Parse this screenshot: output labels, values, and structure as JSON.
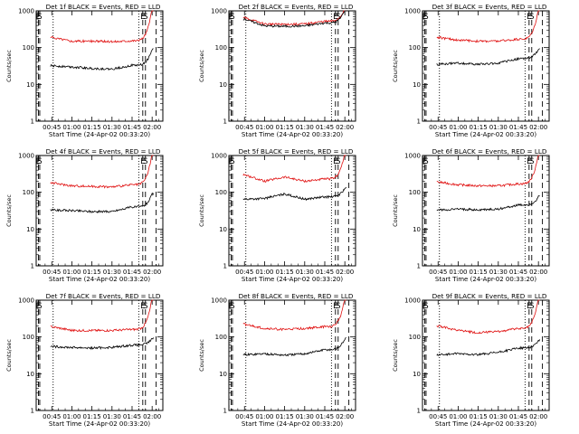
{
  "colors": {
    "events": "#000000",
    "lld": "#e01010",
    "frame": "#000000",
    "background": "#ffffff"
  },
  "chart_data": [
    {
      "type": "line",
      "title": "Det 1f BLACK = Events, RED = LLD",
      "ylabel": "Counts/sec",
      "xlabel": "Start Time (24-Apr-02 00:33:20)",
      "yscale": "log",
      "ylim": [
        1,
        1000
      ],
      "ytick_labels": [
        "1",
        "10",
        "100",
        "1000"
      ],
      "x": [
        "00:45",
        "01:00",
        "01:15",
        "01:30",
        "01:45",
        "02:00"
      ],
      "xtick_labels": [
        "00:45",
        "01:00",
        "01:15",
        "01:30",
        "01:45",
        "02:00"
      ],
      "markers": [
        {
          "time": "00:35",
          "label": "E",
          "style": "dashed"
        },
        {
          "time": "00:36",
          "label": "S",
          "style": "dashed"
        },
        {
          "time": "00:46",
          "label": "",
          "style": "dotted"
        },
        {
          "time": "01:50",
          "label": "",
          "style": "dotted"
        },
        {
          "time": "01:53",
          "label": "E",
          "style": "dashed"
        },
        {
          "time": "01:55",
          "label": "S",
          "style": "dashed"
        },
        {
          "time": "02:03",
          "label": "",
          "style": "dashed"
        }
      ],
      "series": [
        {
          "name": "LLD",
          "color": "#e01010",
          "values": [
            190,
            150,
            150,
            145,
            155,
            1200
          ]
        },
        {
          "name": "Events",
          "color": "#000000",
          "values": [
            32,
            30,
            27,
            26,
            33,
            90
          ]
        }
      ]
    },
    {
      "type": "line",
      "title": "Det 2f BLACK = Events, RED = LLD",
      "ylabel": "Counts/sec",
      "xlabel": "Start Time (24-Apr-02 00:33:20)",
      "yscale": "log",
      "ylim": [
        1,
        1000
      ],
      "ytick_labels": [
        "1",
        "10",
        "100",
        "1000"
      ],
      "x": [
        "00:45",
        "01:00",
        "01:15",
        "01:30",
        "01:45",
        "02:00"
      ],
      "xtick_labels": [
        "00:45",
        "01:00",
        "01:15",
        "01:30",
        "01:45",
        "02:00"
      ],
      "markers": [
        {
          "time": "00:35",
          "label": "E",
          "style": "dashed"
        },
        {
          "time": "00:36",
          "label": "S",
          "style": "dashed"
        },
        {
          "time": "00:46",
          "label": "",
          "style": "dotted"
        },
        {
          "time": "01:50",
          "label": "",
          "style": "dotted"
        },
        {
          "time": "01:53",
          "label": "E",
          "style": "dashed"
        },
        {
          "time": "01:55",
          "label": "S",
          "style": "dashed"
        },
        {
          "time": "02:03",
          "label": "",
          "style": "dashed"
        }
      ],
      "series": [
        {
          "name": "LLD",
          "color": "#e01010",
          "values": [
            650,
            440,
            430,
            440,
            520,
            1200
          ]
        },
        {
          "name": "Events",
          "color": "#000000",
          "values": [
            600,
            390,
            380,
            390,
            470,
            1100
          ]
        }
      ]
    },
    {
      "type": "line",
      "title": "Det 3f BLACK = Events, RED = LLD",
      "ylabel": "Counts/sec",
      "xlabel": "Start Time (24-Apr-02 00:33:20)",
      "yscale": "log",
      "ylim": [
        1,
        1000
      ],
      "ytick_labels": [
        "1",
        "10",
        "100",
        "1000"
      ],
      "x": [
        "00:45",
        "01:00",
        "01:15",
        "01:30",
        "01:45",
        "02:00"
      ],
      "xtick_labels": [
        "00:45",
        "01:00",
        "01:15",
        "01:30",
        "01:45",
        "02:00"
      ],
      "markers": [
        {
          "time": "00:35",
          "label": "E",
          "style": "dashed"
        },
        {
          "time": "00:36",
          "label": "S",
          "style": "dashed"
        },
        {
          "time": "00:46",
          "label": "",
          "style": "dotted"
        },
        {
          "time": "01:50",
          "label": "",
          "style": "dotted"
        },
        {
          "time": "01:53",
          "label": "E",
          "style": "dashed"
        },
        {
          "time": "01:55",
          "label": "S",
          "style": "dashed"
        },
        {
          "time": "02:03",
          "label": "",
          "style": "dashed"
        }
      ],
      "series": [
        {
          "name": "LLD",
          "color": "#e01010",
          "values": [
            190,
            160,
            150,
            150,
            170,
            1200
          ]
        },
        {
          "name": "Events",
          "color": "#000000",
          "values": [
            35,
            38,
            35,
            38,
            50,
            90
          ]
        }
      ]
    },
    {
      "type": "line",
      "title": "Det 4f BLACK = Events, RED = LLD",
      "ylabel": "Counts/sec",
      "xlabel": "Start Time (24-Apr-02 00:33:20)",
      "yscale": "log",
      "ylim": [
        1,
        1000
      ],
      "ytick_labels": [
        "1",
        "10",
        "100",
        "1000"
      ],
      "x": [
        "00:45",
        "01:00",
        "01:15",
        "01:30",
        "01:45",
        "02:00"
      ],
      "xtick_labels": [
        "00:45",
        "01:00",
        "01:15",
        "01:30",
        "01:45",
        "02:00"
      ],
      "markers": [
        {
          "time": "00:35",
          "label": "E",
          "style": "dashed"
        },
        {
          "time": "00:36",
          "label": "S",
          "style": "dashed"
        },
        {
          "time": "00:46",
          "label": "",
          "style": "dotted"
        },
        {
          "time": "01:50",
          "label": "",
          "style": "dotted"
        },
        {
          "time": "01:53",
          "label": "E",
          "style": "dashed"
        },
        {
          "time": "01:55",
          "label": "S",
          "style": "dashed"
        },
        {
          "time": "02:03",
          "label": "",
          "style": "dashed"
        }
      ],
      "series": [
        {
          "name": "LLD",
          "color": "#e01010",
          "values": [
            180,
            150,
            145,
            140,
            160,
            1200
          ]
        },
        {
          "name": "Events",
          "color": "#000000",
          "values": [
            33,
            32,
            30,
            30,
            40,
            90
          ]
        }
      ]
    },
    {
      "type": "line",
      "title": "Det 5f BLACK = Events, RED = LLD",
      "ylabel": "Counts/sec",
      "xlabel": "Start Time (24-Apr-02 00:33:20)",
      "yscale": "log",
      "ylim": [
        1,
        1000
      ],
      "ytick_labels": [
        "1",
        "10",
        "100",
        "1000"
      ],
      "x": [
        "00:45",
        "01:00",
        "01:15",
        "01:30",
        "01:45",
        "02:00"
      ],
      "xtick_labels": [
        "00:45",
        "01:00",
        "01:15",
        "01:30",
        "01:45",
        "02:00"
      ],
      "markers": [
        {
          "time": "00:35",
          "label": "E",
          "style": "dashed"
        },
        {
          "time": "00:36",
          "label": "S",
          "style": "dashed"
        },
        {
          "time": "00:46",
          "label": "",
          "style": "dotted"
        },
        {
          "time": "01:50",
          "label": "",
          "style": "dotted"
        },
        {
          "time": "01:53",
          "label": "E",
          "style": "dashed"
        },
        {
          "time": "01:55",
          "label": "S",
          "style": "dashed"
        },
        {
          "time": "02:03",
          "label": "",
          "style": "dashed"
        }
      ],
      "series": [
        {
          "name": "LLD",
          "color": "#e01010",
          "values": [
            300,
            200,
            260,
            200,
            230,
            1200
          ]
        },
        {
          "name": "Events",
          "color": "#000000",
          "values": [
            65,
            68,
            90,
            65,
            75,
            130
          ]
        }
      ]
    },
    {
      "type": "line",
      "title": "Det 6f BLACK = Events, RED = LLD",
      "ylabel": "Counts/sec",
      "xlabel": "Start Time (24-Apr-02 00:33:20)",
      "yscale": "log",
      "ylim": [
        1,
        1000
      ],
      "ytick_labels": [
        "1",
        "10",
        "100",
        "1000"
      ],
      "x": [
        "00:45",
        "01:00",
        "01:15",
        "01:30",
        "01:45",
        "02:00"
      ],
      "xtick_labels": [
        "00:45",
        "01:00",
        "01:15",
        "01:30",
        "01:45",
        "02:00"
      ],
      "markers": [
        {
          "time": "00:35",
          "label": "E",
          "style": "dashed"
        },
        {
          "time": "00:36",
          "label": "S",
          "style": "dashed"
        },
        {
          "time": "00:46",
          "label": "",
          "style": "dotted"
        },
        {
          "time": "01:50",
          "label": "",
          "style": "dotted"
        },
        {
          "time": "01:53",
          "label": "E",
          "style": "dashed"
        },
        {
          "time": "01:55",
          "label": "S",
          "style": "dashed"
        },
        {
          "time": "02:03",
          "label": "",
          "style": "dashed"
        }
      ],
      "series": [
        {
          "name": "LLD",
          "color": "#e01010",
          "values": [
            190,
            160,
            150,
            150,
            170,
            1200
          ]
        },
        {
          "name": "Events",
          "color": "#000000",
          "values": [
            33,
            35,
            33,
            35,
            45,
            75
          ]
        }
      ]
    },
    {
      "type": "line",
      "title": "Det 7f BLACK = Events, RED = LLD",
      "ylabel": "Counts/sec",
      "xlabel": "Start Time (24-Apr-02 00:33:20)",
      "yscale": "log",
      "ylim": [
        1,
        1000
      ],
      "ytick_labels": [
        "1",
        "10",
        "100",
        "1000"
      ],
      "x": [
        "00:45",
        "01:00",
        "01:15",
        "01:30",
        "01:45",
        "02:00"
      ],
      "xtick_labels": [
        "00:45",
        "01:00",
        "01:15",
        "01:30",
        "01:45",
        "02:00"
      ],
      "markers": [
        {
          "time": "00:35",
          "label": "E",
          "style": "dashed"
        },
        {
          "time": "00:36",
          "label": "S",
          "style": "dashed"
        },
        {
          "time": "00:46",
          "label": "",
          "style": "dotted"
        },
        {
          "time": "01:50",
          "label": "",
          "style": "dotted"
        },
        {
          "time": "01:53",
          "label": "E",
          "style": "dashed"
        },
        {
          "time": "01:55",
          "label": "S",
          "style": "dashed"
        },
        {
          "time": "02:03",
          "label": "",
          "style": "dashed"
        }
      ],
      "series": [
        {
          "name": "LLD",
          "color": "#e01010",
          "values": [
            190,
            150,
            150,
            150,
            160,
            1200
          ]
        },
        {
          "name": "Events",
          "color": "#000000",
          "values": [
            55,
            52,
            50,
            52,
            60,
            90
          ]
        }
      ]
    },
    {
      "type": "line",
      "title": "Det 8f BLACK = Events, RED = LLD",
      "ylabel": "Counts/sec",
      "xlabel": "Start Time (24-Apr-02 00:33:20)",
      "yscale": "log",
      "ylim": [
        1,
        1000
      ],
      "ytick_labels": [
        "1",
        "10",
        "100",
        "1000"
      ],
      "x": [
        "00:45",
        "01:00",
        "01:15",
        "01:30",
        "01:45",
        "02:00"
      ],
      "xtick_labels": [
        "00:45",
        "01:00",
        "01:15",
        "01:30",
        "01:45",
        "02:00"
      ],
      "markers": [
        {
          "time": "00:35",
          "label": "E",
          "style": "dashed"
        },
        {
          "time": "00:36",
          "label": "S",
          "style": "dashed"
        },
        {
          "time": "00:46",
          "label": "",
          "style": "dotted"
        },
        {
          "time": "01:50",
          "label": "",
          "style": "dotted"
        },
        {
          "time": "01:53",
          "label": "E",
          "style": "dashed"
        },
        {
          "time": "01:55",
          "label": "S",
          "style": "dashed"
        },
        {
          "time": "02:03",
          "label": "",
          "style": "dashed"
        }
      ],
      "series": [
        {
          "name": "LLD",
          "color": "#e01010",
          "values": [
            220,
            170,
            160,
            170,
            190,
            1200
          ]
        },
        {
          "name": "Events",
          "color": "#000000",
          "values": [
            33,
            35,
            32,
            35,
            45,
            90
          ]
        }
      ]
    },
    {
      "type": "line",
      "title": "Det 9f BLACK = Events, RED = LLD",
      "ylabel": "Counts/sec",
      "xlabel": "Start Time (24-Apr-02 00:33:20)",
      "yscale": "log",
      "ylim": [
        1,
        1000
      ],
      "ytick_labels": [
        "1",
        "10",
        "100",
        "1000"
      ],
      "x": [
        "00:45",
        "01:00",
        "01:15",
        "01:30",
        "01:45",
        "02:00"
      ],
      "xtick_labels": [
        "00:45",
        "01:00",
        "01:15",
        "01:30",
        "01:45",
        "02:00"
      ],
      "markers": [
        {
          "time": "00:35",
          "label": "E",
          "style": "dashed"
        },
        {
          "time": "00:36",
          "label": "S",
          "style": "dashed"
        },
        {
          "time": "00:46",
          "label": "",
          "style": "dotted"
        },
        {
          "time": "01:50",
          "label": "",
          "style": "dotted"
        },
        {
          "time": "01:53",
          "label": "E",
          "style": "dashed"
        },
        {
          "time": "01:55",
          "label": "S",
          "style": "dashed"
        },
        {
          "time": "02:03",
          "label": "",
          "style": "dashed"
        }
      ],
      "series": [
        {
          "name": "LLD",
          "color": "#e01010",
          "values": [
            200,
            150,
            130,
            140,
            170,
            1200
          ]
        },
        {
          "name": "Events",
          "color": "#000000",
          "values": [
            33,
            35,
            33,
            38,
            50,
            80
          ]
        }
      ]
    }
  ]
}
